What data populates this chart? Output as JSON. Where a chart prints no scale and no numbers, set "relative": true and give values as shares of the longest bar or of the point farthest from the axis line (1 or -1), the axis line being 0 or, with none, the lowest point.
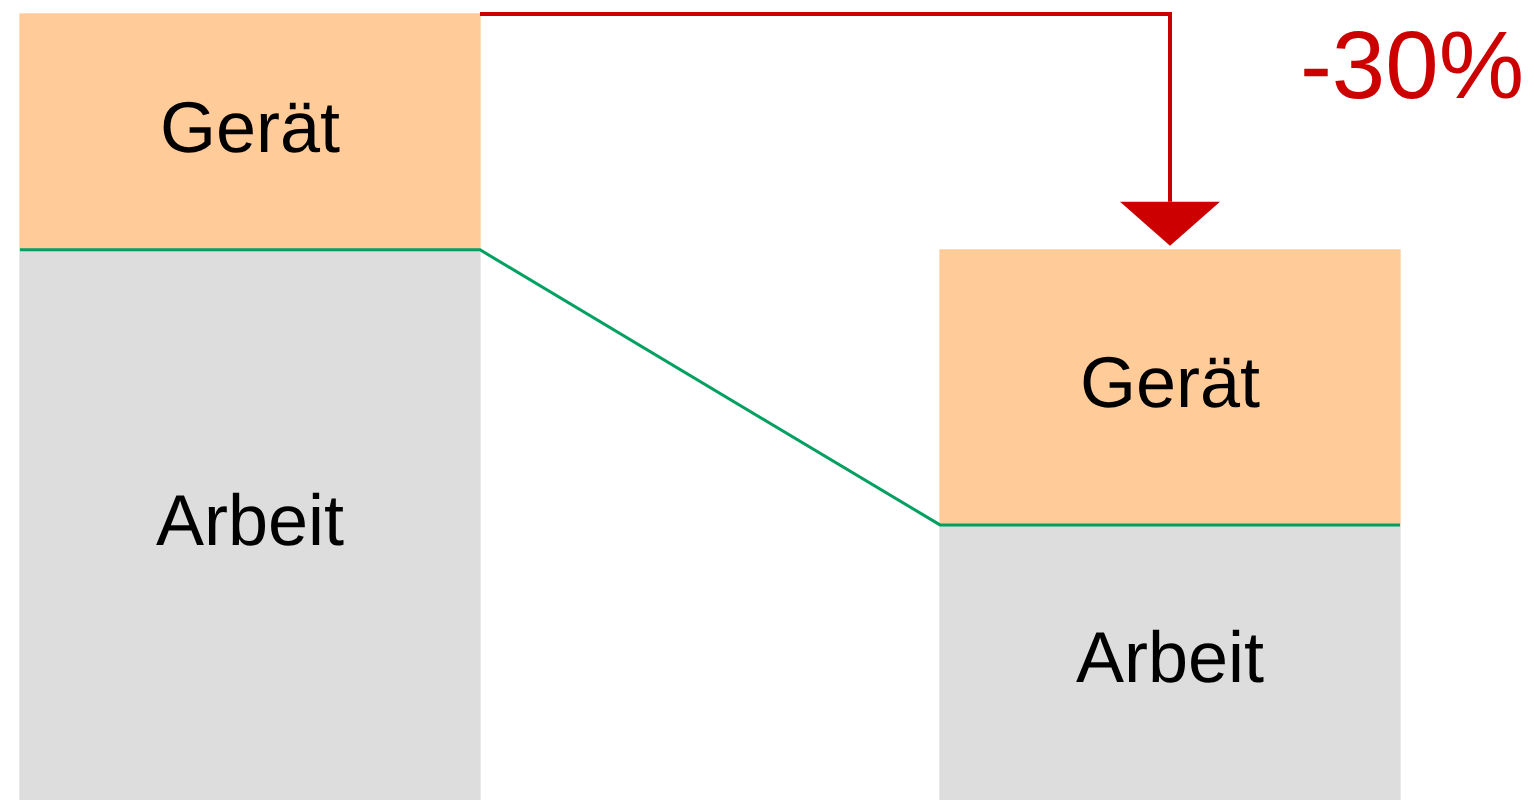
{
  "chart_data": {
    "type": "bar",
    "stacked": true,
    "relative": true,
    "categories": [
      null,
      null
    ],
    "series": [
      {
        "name": "Arbeit",
        "color": "#dddddd",
        "values": [
          0.7,
          0.35
        ]
      },
      {
        "name": "Gerät",
        "color": "#ffcc99",
        "values": [
          0.3,
          0.35
        ]
      }
    ],
    "annotations": [
      "-30%"
    ]
  }
}
